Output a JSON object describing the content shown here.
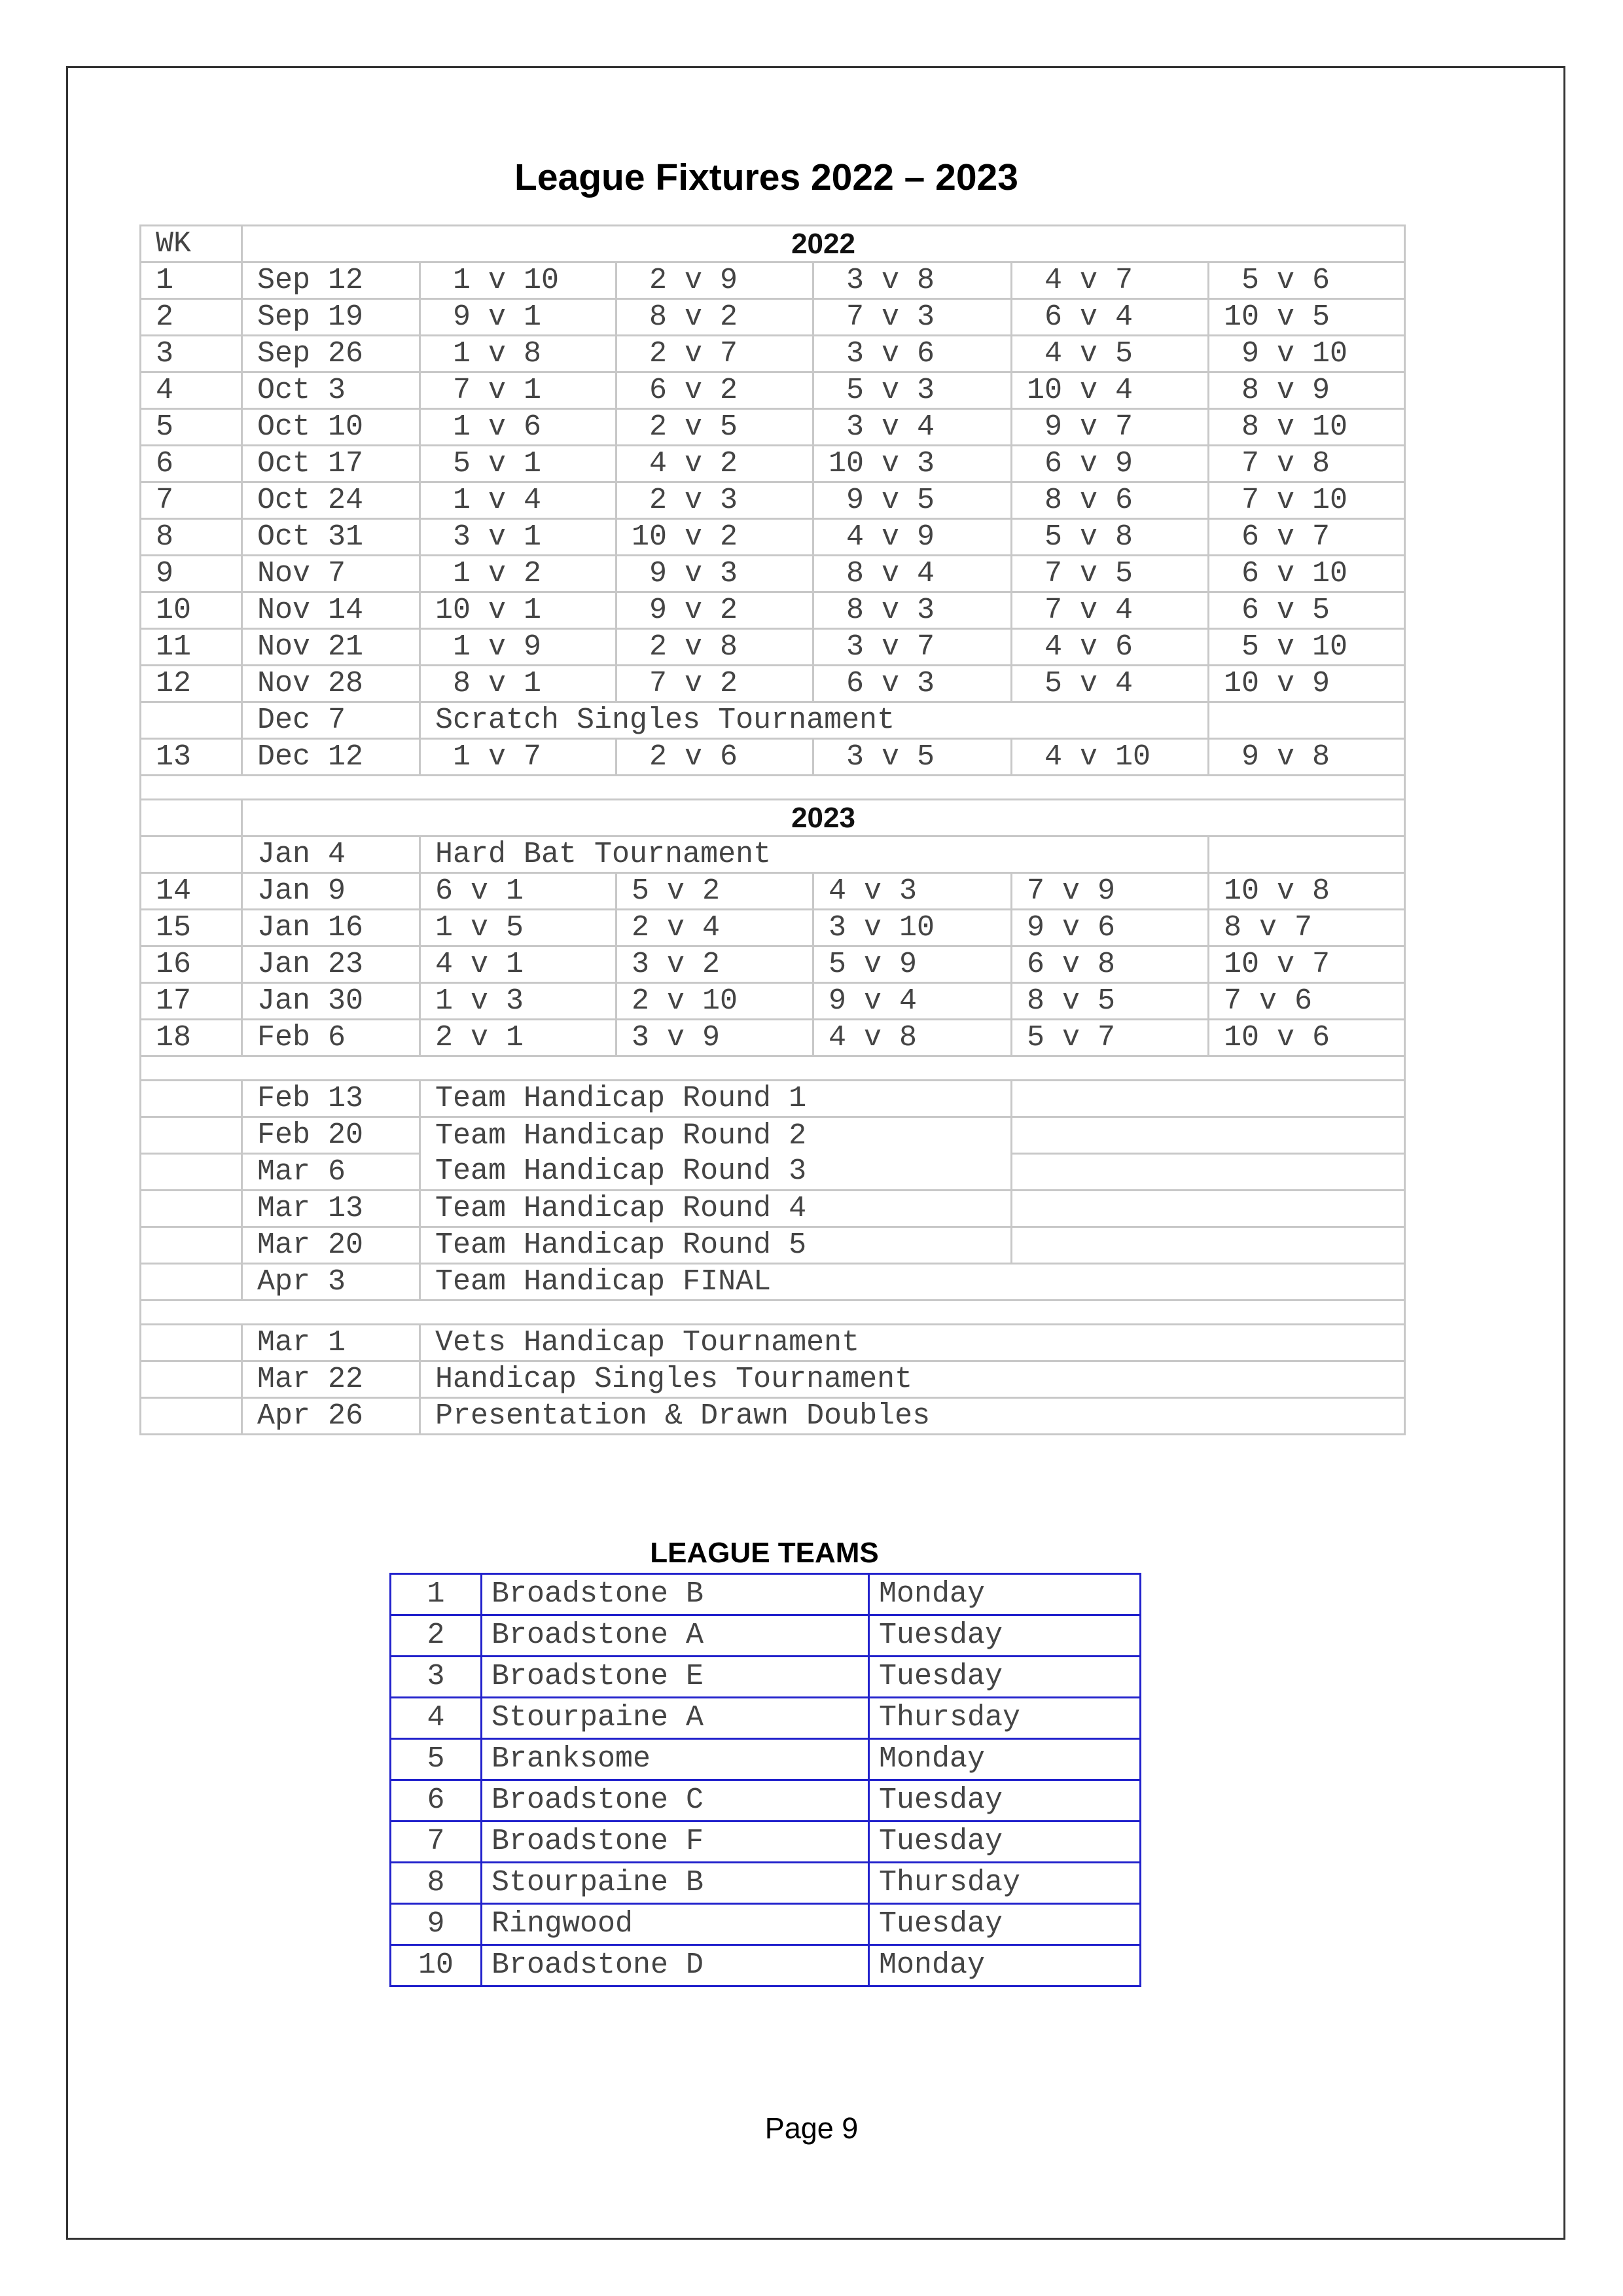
{
  "title": "League Fixtures 2022 – 2023",
  "fixtures": {
    "wk_header": "WK",
    "year_2022": "2022",
    "year_2023": "2023",
    "rows_2022": [
      {
        "wk": "1",
        "date": "Sep 12",
        "matches": [
          " 1 v 10",
          " 2 v 9",
          " 3 v 8",
          " 4 v 7",
          " 5 v 6"
        ]
      },
      {
        "wk": "2",
        "date": "Sep 19",
        "matches": [
          " 9 v 1",
          " 8 v 2",
          " 7 v 3",
          " 6 v 4",
          "10 v 5"
        ]
      },
      {
        "wk": "3",
        "date": "Sep 26",
        "matches": [
          " 1 v 8",
          " 2 v 7",
          " 3 v 6",
          " 4 v 5",
          " 9 v 10"
        ]
      },
      {
        "wk": "4",
        "date": "Oct 3",
        "matches": [
          " 7 v 1",
          " 6 v 2",
          " 5 v 3",
          "10 v 4",
          " 8 v 9"
        ]
      },
      {
        "wk": "5",
        "date": "Oct 10",
        "matches": [
          " 1 v 6",
          " 2 v 5",
          " 3 v 4",
          " 9 v 7",
          " 8 v 10"
        ]
      },
      {
        "wk": "6",
        "date": "Oct 17",
        "matches": [
          " 5 v 1",
          " 4 v 2",
          "10 v 3",
          " 6 v 9",
          " 7 v 8"
        ]
      },
      {
        "wk": "7",
        "date": "Oct 24",
        "matches": [
          " 1 v 4",
          " 2 v 3",
          " 9 v 5",
          " 8 v 6",
          " 7 v 10"
        ]
      },
      {
        "wk": "8",
        "date": "Oct 31",
        "matches": [
          " 3 v 1",
          "10 v 2",
          " 4 v 9",
          " 5 v 8",
          " 6 v 7"
        ]
      },
      {
        "wk": "9",
        "date": "Nov 7",
        "matches": [
          " 1 v 2",
          " 9 v 3",
          " 8 v 4",
          " 7 v 5",
          " 6 v 10"
        ]
      },
      {
        "wk": "10",
        "date": "Nov 14",
        "matches": [
          "10 v 1",
          " 9 v 2",
          " 8 v 3",
          " 7 v 4",
          " 6 v 5"
        ]
      },
      {
        "wk": "11",
        "date": "Nov 21",
        "matches": [
          " 1 v 9",
          " 2 v 8",
          " 3 v 7",
          " 4 v 6",
          " 5 v 10"
        ]
      },
      {
        "wk": "12",
        "date": "Nov 28",
        "matches": [
          " 8 v 1",
          " 7 v 2",
          " 6 v 3",
          " 5 v 4",
          "10 v 9"
        ]
      },
      {
        "wk": "",
        "date": "Dec 7",
        "event": "Scratch Singles Tournament"
      },
      {
        "wk": "13",
        "date": "Dec 12",
        "matches": [
          " 1 v 7",
          " 2 v 6",
          " 3 v 5",
          " 4 v 10",
          " 9 v 8"
        ]
      }
    ],
    "rows_2023": [
      {
        "wk": "",
        "date": "Jan 4",
        "event": "Hard Bat Tournament"
      },
      {
        "wk": "14",
        "date": "Jan 9",
        "matches": [
          "6 v 1",
          "5 v 2",
          "4 v 3",
          "7 v 9",
          "10 v 8"
        ]
      },
      {
        "wk": "15",
        "date": "Jan 16",
        "matches": [
          "1 v 5",
          "2 v 4",
          "3 v 10",
          "9 v 6",
          "8 v 7"
        ]
      },
      {
        "wk": "16",
        "date": "Jan 23",
        "matches": [
          "4 v 1",
          "3 v 2",
          "5 v 9",
          "6 v 8",
          "10 v 7"
        ]
      },
      {
        "wk": "17",
        "date": "Jan 30",
        "matches": [
          "1 v 3",
          "2 v 10",
          "9 v 4",
          "8 v 5",
          "7 v 6"
        ]
      },
      {
        "wk": "18",
        "date": "Feb 6",
        "matches": [
          "2 v 1",
          "3 v 9",
          "4 v 8",
          "5 v 7",
          "10 v 6"
        ]
      }
    ],
    "handicap_rows": [
      {
        "date": "Feb 13",
        "event": "Team Handicap Round 1"
      },
      {
        "date": "Feb 20",
        "event": "Team Handicap Round 2"
      },
      {
        "date": "Mar 6",
        "event": "Team Handicap Round 3"
      },
      {
        "date": "Mar 13",
        "event": "Team Handicap Round 4"
      },
      {
        "date": "Mar 20",
        "event": "Team Handicap Round 5"
      },
      {
        "date": "Apr 3",
        "event": "Team Handicap FINAL"
      }
    ],
    "other_events": [
      {
        "date": "Mar 1",
        "event": "Vets Handicap Tournament"
      },
      {
        "date": "Mar 22",
        "event": "Handicap Singles Tournament"
      },
      {
        "date": "Apr 26",
        "event": "Presentation & Drawn Doubles"
      }
    ]
  },
  "teams": {
    "title": "LEAGUE TEAMS",
    "rows": [
      {
        "num": "1",
        "name": "Broadstone B",
        "night": "Monday"
      },
      {
        "num": "2",
        "name": "Broadstone A",
        "night": "Tuesday"
      },
      {
        "num": "3",
        "name": "Broadstone E",
        "night": "Tuesday"
      },
      {
        "num": "4",
        "name": "Stourpaine A",
        "night": "Thursday"
      },
      {
        "num": "5",
        "name": "Branksome",
        "night": "Monday"
      },
      {
        "num": "6",
        "name": "Broadstone C",
        "night": "Tuesday"
      },
      {
        "num": "7",
        "name": "Broadstone F",
        "night": "Tuesday"
      },
      {
        "num": "8",
        "name": "Stourpaine B",
        "night": "Thursday"
      },
      {
        "num": "9",
        "name": "Ringwood",
        "night": "Tuesday"
      },
      {
        "num": "10",
        "name": "Broadstone D",
        "night": "Monday"
      }
    ]
  },
  "footer": {
    "page": "Page 9"
  },
  "colors": {
    "grid": "#c8c8c8",
    "teams_border": "#2222cc",
    "text": "#444444"
  }
}
